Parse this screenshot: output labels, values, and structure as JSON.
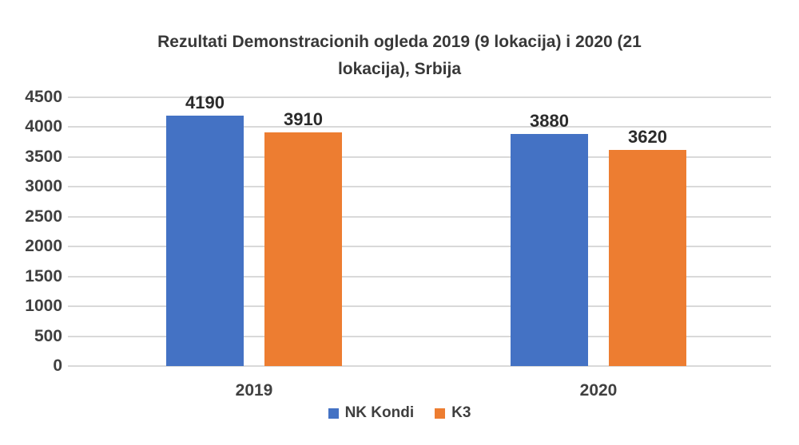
{
  "chart_data": {
    "type": "bar",
    "title": "Rezultati Demonstracionih ogleda 2019 (9 lokacija) i 2020 (21 lokacija), Srbija",
    "title_lines": [
      "Rezultati Demonstracionih ogleda 2019 (9 lokacija) i 2020 (21",
      "lokacija), Srbija"
    ],
    "categories": [
      "2019",
      "2020"
    ],
    "series": [
      {
        "name": "NK Kondi",
        "color": "#4472C4",
        "values": [
          4190,
          3880
        ]
      },
      {
        "name": "K3",
        "color": "#ED7D31",
        "values": [
          3910,
          3620
        ]
      }
    ],
    "xlabel": "",
    "ylabel": "",
    "ylim": [
      0,
      4500
    ],
    "yticks": [
      0,
      500,
      1000,
      1500,
      2000,
      2500,
      3000,
      3500,
      4000,
      4500
    ],
    "grid": true,
    "gridline_color": "#d9d9d9",
    "data_labels": true,
    "legend_position": "bottom"
  }
}
